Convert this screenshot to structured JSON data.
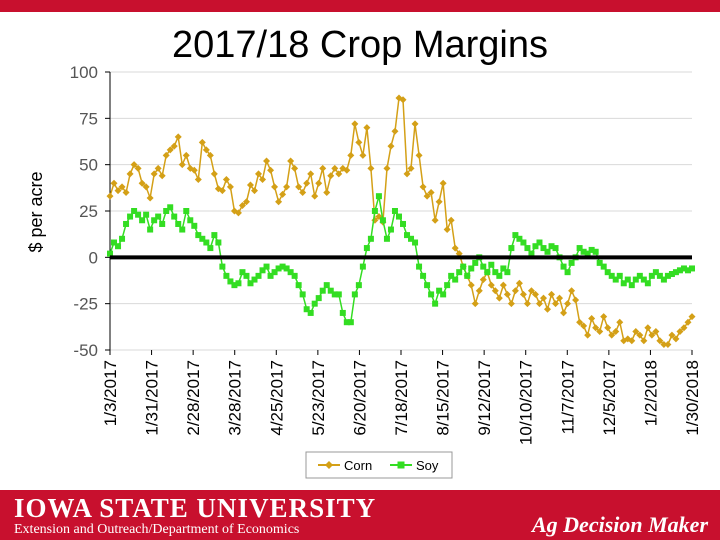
{
  "chart_data": {
    "type": "line",
    "title": "2017/18 Crop Margins",
    "ylabel": "$ per acre",
    "xlabel": "",
    "ylim": [
      -50,
      100
    ],
    "yticks": [
      100,
      75,
      50,
      25,
      0,
      -25,
      -50
    ],
    "x_tick_labels": [
      "1/3/2017",
      "1/31/2017",
      "2/28/2017",
      "3/28/2017",
      "4/25/2017",
      "5/23/2017",
      "6/20/2017",
      "7/18/2017",
      "8/15/2017",
      "9/12/2017",
      "10/10/2017",
      "11/7/2017",
      "12/5/2017",
      "1/2/2018",
      "1/30/2018"
    ],
    "zero_line": true,
    "legend_position": "bottom",
    "series": [
      {
        "name": "Corn",
        "color": "#d4a017",
        "marker": "diamond",
        "points": [
          [
            0,
            33
          ],
          [
            1,
            40
          ],
          [
            2,
            36
          ],
          [
            3,
            38
          ],
          [
            4,
            35
          ],
          [
            5,
            45
          ],
          [
            6,
            50
          ],
          [
            7,
            48
          ],
          [
            8,
            40
          ],
          [
            9,
            38
          ],
          [
            10,
            32
          ],
          [
            11,
            45
          ],
          [
            12,
            48
          ],
          [
            13,
            44
          ],
          [
            14,
            55
          ],
          [
            15,
            58
          ],
          [
            16,
            60
          ],
          [
            17,
            65
          ],
          [
            18,
            50
          ],
          [
            19,
            55
          ],
          [
            20,
            48
          ],
          [
            21,
            47
          ],
          [
            22,
            42
          ],
          [
            23,
            62
          ],
          [
            24,
            58
          ],
          [
            25,
            55
          ],
          [
            26,
            45
          ],
          [
            27,
            37
          ],
          [
            28,
            36
          ],
          [
            29,
            42
          ],
          [
            30,
            38
          ],
          [
            31,
            25
          ],
          [
            32,
            24
          ],
          [
            33,
            28
          ],
          [
            34,
            30
          ],
          [
            35,
            39
          ],
          [
            36,
            36
          ],
          [
            37,
            45
          ],
          [
            38,
            42
          ],
          [
            39,
            52
          ],
          [
            40,
            47
          ],
          [
            41,
            38
          ],
          [
            42,
            30
          ],
          [
            43,
            34
          ],
          [
            44,
            38
          ],
          [
            45,
            52
          ],
          [
            46,
            48
          ],
          [
            47,
            38
          ],
          [
            48,
            35
          ],
          [
            49,
            40
          ],
          [
            50,
            45
          ],
          [
            51,
            33
          ],
          [
            52,
            40
          ],
          [
            53,
            48
          ],
          [
            54,
            35
          ],
          [
            55,
            44
          ],
          [
            56,
            48
          ],
          [
            57,
            45
          ],
          [
            58,
            48
          ],
          [
            59,
            47
          ],
          [
            60,
            55
          ],
          [
            61,
            72
          ],
          [
            62,
            62
          ],
          [
            63,
            55
          ],
          [
            64,
            70
          ],
          [
            65,
            48
          ],
          [
            66,
            20
          ],
          [
            67,
            22
          ],
          [
            68,
            19
          ],
          [
            69,
            48
          ],
          [
            70,
            60
          ],
          [
            71,
            68
          ],
          [
            72,
            86
          ],
          [
            73,
            85
          ],
          [
            74,
            45
          ],
          [
            75,
            48
          ],
          [
            76,
            72
          ],
          [
            77,
            55
          ],
          [
            78,
            38
          ],
          [
            79,
            33
          ],
          [
            80,
            35
          ],
          [
            81,
            20
          ],
          [
            82,
            30
          ],
          [
            83,
            40
          ],
          [
            84,
            15
          ],
          [
            85,
            20
          ],
          [
            86,
            5
          ],
          [
            87,
            2
          ],
          [
            88,
            -5
          ],
          [
            89,
            -10
          ],
          [
            90,
            -15
          ],
          [
            91,
            -25
          ],
          [
            92,
            -18
          ],
          [
            93,
            -12
          ],
          [
            94,
            -8
          ],
          [
            95,
            -15
          ],
          [
            96,
            -18
          ],
          [
            97,
            -22
          ],
          [
            98,
            -15
          ],
          [
            99,
            -20
          ],
          [
            100,
            -25
          ],
          [
            101,
            -18
          ],
          [
            102,
            -14
          ],
          [
            103,
            -20
          ],
          [
            104,
            -25
          ],
          [
            105,
            -18
          ],
          [
            106,
            -20
          ],
          [
            107,
            -25
          ],
          [
            108,
            -22
          ],
          [
            109,
            -28
          ],
          [
            110,
            -20
          ],
          [
            111,
            -25
          ],
          [
            112,
            -22
          ],
          [
            113,
            -30
          ],
          [
            114,
            -25
          ],
          [
            115,
            -18
          ],
          [
            116,
            -23
          ],
          [
            117,
            -35
          ],
          [
            118,
            -37
          ],
          [
            119,
            -42
          ],
          [
            120,
            -33
          ],
          [
            121,
            -38
          ],
          [
            122,
            -40
          ],
          [
            123,
            -32
          ],
          [
            124,
            -38
          ],
          [
            125,
            -42
          ],
          [
            126,
            -40
          ],
          [
            127,
            -35
          ],
          [
            128,
            -45
          ],
          [
            129,
            -44
          ],
          [
            130,
            -45
          ],
          [
            131,
            -40
          ],
          [
            132,
            -42
          ],
          [
            133,
            -45
          ],
          [
            134,
            -38
          ],
          [
            135,
            -42
          ],
          [
            136,
            -40
          ],
          [
            137,
            -45
          ],
          [
            138,
            -47
          ],
          [
            139,
            -47
          ],
          [
            140,
            -42
          ],
          [
            141,
            -44
          ],
          [
            142,
            -40
          ],
          [
            143,
            -38
          ],
          [
            144,
            -35
          ],
          [
            145,
            -32
          ]
        ]
      },
      {
        "name": "Soy",
        "color": "#33dd22",
        "marker": "square",
        "points": [
          [
            0,
            2
          ],
          [
            1,
            8
          ],
          [
            2,
            6
          ],
          [
            3,
            10
          ],
          [
            4,
            18
          ],
          [
            5,
            22
          ],
          [
            6,
            25
          ],
          [
            7,
            23
          ],
          [
            8,
            20
          ],
          [
            9,
            23
          ],
          [
            10,
            15
          ],
          [
            11,
            20
          ],
          [
            12,
            22
          ],
          [
            13,
            18
          ],
          [
            14,
            25
          ],
          [
            15,
            27
          ],
          [
            16,
            22
          ],
          [
            17,
            18
          ],
          [
            18,
            15
          ],
          [
            19,
            25
          ],
          [
            20,
            20
          ],
          [
            21,
            17
          ],
          [
            22,
            12
          ],
          [
            23,
            10
          ],
          [
            24,
            8
          ],
          [
            25,
            5
          ],
          [
            26,
            12
          ],
          [
            27,
            8
          ],
          [
            28,
            -5
          ],
          [
            29,
            -10
          ],
          [
            30,
            -13
          ],
          [
            31,
            -15
          ],
          [
            32,
            -14
          ],
          [
            33,
            -8
          ],
          [
            34,
            -10
          ],
          [
            35,
            -14
          ],
          [
            36,
            -12
          ],
          [
            37,
            -10
          ],
          [
            38,
            -7
          ],
          [
            39,
            -5
          ],
          [
            40,
            -10
          ],
          [
            41,
            -8
          ],
          [
            42,
            -6
          ],
          [
            43,
            -5
          ],
          [
            44,
            -6
          ],
          [
            45,
            -8
          ],
          [
            46,
            -10
          ],
          [
            47,
            -15
          ],
          [
            48,
            -20
          ],
          [
            49,
            -28
          ],
          [
            50,
            -30
          ],
          [
            51,
            -25
          ],
          [
            52,
            -22
          ],
          [
            53,
            -18
          ],
          [
            54,
            -15
          ],
          [
            55,
            -18
          ],
          [
            56,
            -20
          ],
          [
            57,
            -20
          ],
          [
            58,
            -30
          ],
          [
            59,
            -35
          ],
          [
            60,
            -35
          ],
          [
            61,
            -20
          ],
          [
            62,
            -15
          ],
          [
            63,
            -5
          ],
          [
            64,
            5
          ],
          [
            65,
            10
          ],
          [
            66,
            25
          ],
          [
            67,
            33
          ],
          [
            68,
            20
          ],
          [
            69,
            10
          ],
          [
            70,
            15
          ],
          [
            71,
            25
          ],
          [
            72,
            22
          ],
          [
            73,
            18
          ],
          [
            74,
            12
          ],
          [
            75,
            10
          ],
          [
            76,
            8
          ],
          [
            77,
            -5
          ],
          [
            78,
            -10
          ],
          [
            79,
            -15
          ],
          [
            80,
            -20
          ],
          [
            81,
            -25
          ],
          [
            82,
            -18
          ],
          [
            83,
            -20
          ],
          [
            84,
            -15
          ],
          [
            85,
            -10
          ],
          [
            86,
            -12
          ],
          [
            87,
            -8
          ],
          [
            88,
            -5
          ],
          [
            89,
            -10
          ],
          [
            90,
            -6
          ],
          [
            91,
            -3
          ],
          [
            92,
            0
          ],
          [
            93,
            -5
          ],
          [
            94,
            -8
          ],
          [
            95,
            -4
          ],
          [
            96,
            -8
          ],
          [
            97,
            -10
          ],
          [
            98,
            -6
          ],
          [
            99,
            -8
          ],
          [
            100,
            5
          ],
          [
            101,
            12
          ],
          [
            102,
            10
          ],
          [
            103,
            8
          ],
          [
            104,
            5
          ],
          [
            105,
            2
          ],
          [
            106,
            6
          ],
          [
            107,
            8
          ],
          [
            108,
            5
          ],
          [
            109,
            3
          ],
          [
            110,
            6
          ],
          [
            111,
            5
          ],
          [
            112,
            0
          ],
          [
            113,
            -5
          ],
          [
            114,
            -8
          ],
          [
            115,
            -3
          ],
          [
            116,
            0
          ],
          [
            117,
            5
          ],
          [
            118,
            3
          ],
          [
            119,
            2
          ],
          [
            120,
            4
          ],
          [
            121,
            3
          ],
          [
            122,
            -3
          ],
          [
            123,
            -5
          ],
          [
            124,
            -8
          ],
          [
            125,
            -10
          ],
          [
            126,
            -12
          ],
          [
            127,
            -10
          ],
          [
            128,
            -14
          ],
          [
            129,
            -12
          ],
          [
            130,
            -15
          ],
          [
            131,
            -12
          ],
          [
            132,
            -10
          ],
          [
            133,
            -12
          ],
          [
            134,
            -14
          ],
          [
            135,
            -10
          ],
          [
            136,
            -8
          ],
          [
            137,
            -10
          ],
          [
            138,
            -12
          ],
          [
            139,
            -10
          ],
          [
            140,
            -9
          ],
          [
            141,
            -8
          ],
          [
            142,
            -7
          ],
          [
            143,
            -6
          ],
          [
            144,
            -7
          ],
          [
            145,
            -6
          ]
        ]
      }
    ]
  },
  "footer": {
    "university": "IOWA STATE UNIVERSITY",
    "department": "Extension and Outreach/Department of Economics",
    "brand": "Ag Decision Maker"
  },
  "colors": {
    "footer_bg": "#c8102e",
    "zero_line": "#000000",
    "grid": "#d9d9d9"
  }
}
